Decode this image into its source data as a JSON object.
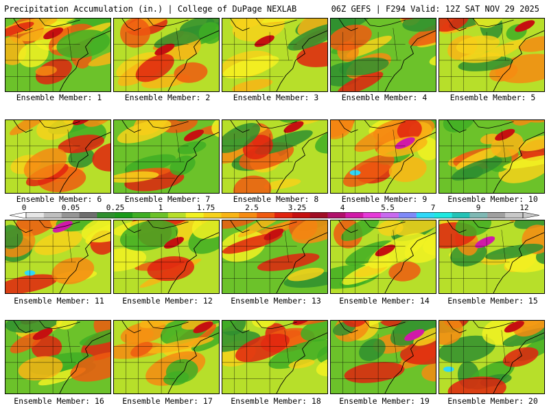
{
  "header": {
    "left_title": "Precipitation Accumulation (in.) | College of DuPage NEXLAB",
    "right_title": "06Z GEFS | F294 Valid: 12Z SAT NOV 29 2025"
  },
  "colors": {
    "background": "#ffffff",
    "scale": [
      "#e6e6e6",
      "#bfbfbf",
      "#969696",
      "#6e6e6e",
      "#2f8f2f",
      "#1a9a1a",
      "#3fae24",
      "#6cc22a",
      "#b7df2a",
      "#f2f222",
      "#f7d21a",
      "#f9b515",
      "#f68b12",
      "#ef5a10",
      "#e0230f",
      "#c51010",
      "#a00d24",
      "#b0106a",
      "#d01aa8",
      "#e53ad8",
      "#c86af0",
      "#7f8af8",
      "#2fd8f8",
      "#1fe8e0",
      "#25c2b6",
      "#7fb8b4",
      "#a0a0a0",
      "#c8c8c8"
    ]
  },
  "colorbar": {
    "ticks": [
      "0",
      "0.05",
      "0.25",
      "1",
      "1.75",
      "2.5",
      "3.25",
      "4",
      "5.5",
      "7",
      "9",
      "12"
    ]
  },
  "members": [
    {
      "label": "Ensemble Member: 1"
    },
    {
      "label": "Ensemble Member: 2"
    },
    {
      "label": "Ensemble Member: 3"
    },
    {
      "label": "Ensemble Member: 4"
    },
    {
      "label": "Ensemble Member: 5"
    },
    {
      "label": "Ensemble Member: 6"
    },
    {
      "label": "Ensemble Member: 7"
    },
    {
      "label": "Ensemble Member: 8"
    },
    {
      "label": "Ensemble Member: 9"
    },
    {
      "label": "Ensemble Member: 10"
    },
    {
      "label": "Ensemble Member: 11"
    },
    {
      "label": "Ensemble Member: 12"
    },
    {
      "label": "Ensemble Member: 13"
    },
    {
      "label": "Ensemble Member: 14"
    },
    {
      "label": "Ensemble Member: 15"
    },
    {
      "label": "Ensemble Member: 16"
    },
    {
      "label": "Ensemble Member: 17"
    },
    {
      "label": "Ensemble Member: 18"
    },
    {
      "label": "Ensemble Member: 19"
    },
    {
      "label": "Ensemble Member: 20"
    }
  ]
}
